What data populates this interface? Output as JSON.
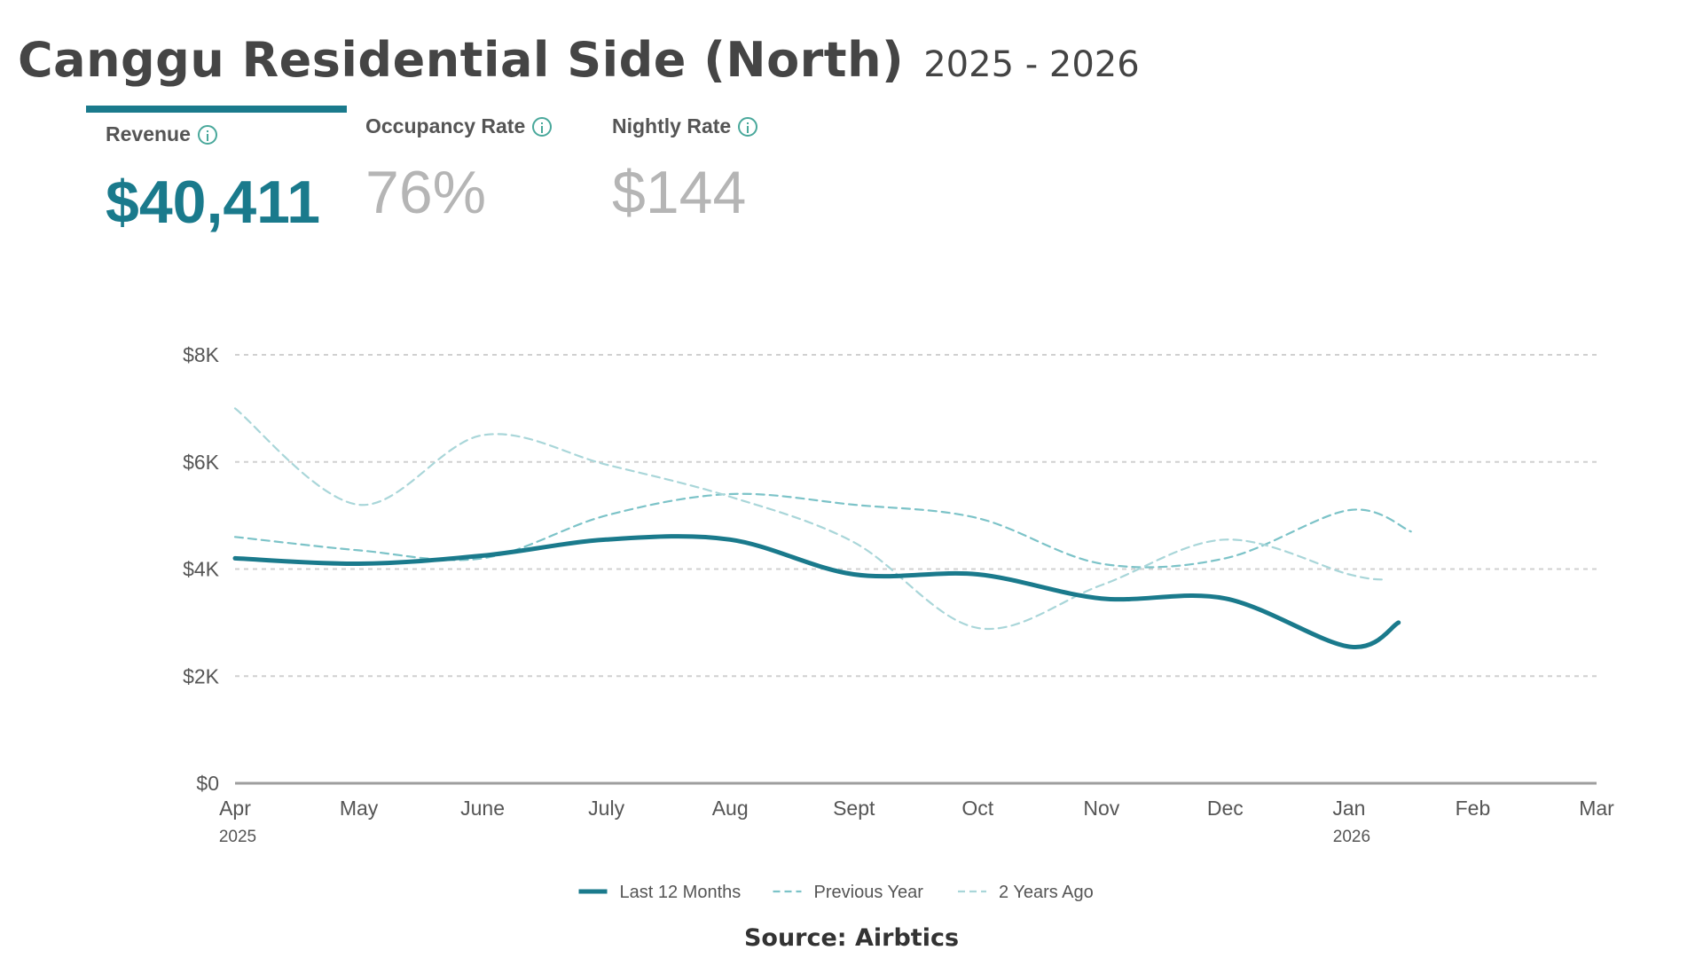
{
  "header": {
    "title": "Canggu Residential Side (North)",
    "years": "2025 - 2026"
  },
  "metrics": {
    "revenue": {
      "label": "Revenue",
      "value": "$40,411"
    },
    "occupancy": {
      "label": "Occupancy Rate",
      "value": "76%"
    },
    "nightly": {
      "label": "Nightly Rate",
      "value": "$144"
    }
  },
  "chart_data": {
    "type": "line",
    "x": [
      "Apr",
      "May",
      "June",
      "July",
      "Aug",
      "Sept",
      "Oct",
      "Nov",
      "Dec",
      "Jan",
      "Feb",
      "Mar"
    ],
    "x_year_labels": {
      "Apr": "2025",
      "Jan": "2026"
    },
    "y_ticks": [
      {
        "value": 0,
        "label": "$0"
      },
      {
        "value": 2000,
        "label": "$2K"
      },
      {
        "value": 4000,
        "label": "$4K"
      },
      {
        "value": 6000,
        "label": "$6K"
      },
      {
        "value": 8000,
        "label": "$8K"
      }
    ],
    "ylim": [
      0,
      8000
    ],
    "grid": true,
    "legend_position": "bottom-center",
    "series": [
      {
        "name": "Last 12 Months",
        "style": "solid",
        "color": "#1a7a8c",
        "points": [
          [
            0,
            4200
          ],
          [
            1,
            4100
          ],
          [
            2,
            4250
          ],
          [
            3,
            4550
          ],
          [
            4,
            4550
          ],
          [
            5,
            3900
          ],
          [
            6,
            3900
          ],
          [
            7,
            3450
          ],
          [
            8,
            3450
          ],
          [
            9,
            2550
          ],
          [
            9.4,
            3000
          ]
        ]
      },
      {
        "name": "Previous Year",
        "style": "dashed",
        "color": "#7cc3c8",
        "points": [
          [
            0,
            4600
          ],
          [
            1,
            4350
          ],
          [
            2,
            4200
          ],
          [
            3,
            5000
          ],
          [
            4,
            5400
          ],
          [
            5,
            5200
          ],
          [
            6,
            4950
          ],
          [
            7,
            4100
          ],
          [
            8,
            4200
          ],
          [
            9,
            5100
          ],
          [
            9.5,
            4700
          ]
        ]
      },
      {
        "name": "2 Years Ago",
        "style": "dashed",
        "color": "#a9d6d9",
        "points": [
          [
            0,
            7000
          ],
          [
            1,
            5200
          ],
          [
            2,
            6500
          ],
          [
            3,
            5950
          ],
          [
            4,
            5350
          ],
          [
            5,
            4500
          ],
          [
            6,
            2900
          ],
          [
            7,
            3700
          ],
          [
            8,
            4550
          ],
          [
            9,
            3900
          ],
          [
            9.3,
            3800
          ]
        ]
      }
    ]
  },
  "source": "Source: Airbtics"
}
